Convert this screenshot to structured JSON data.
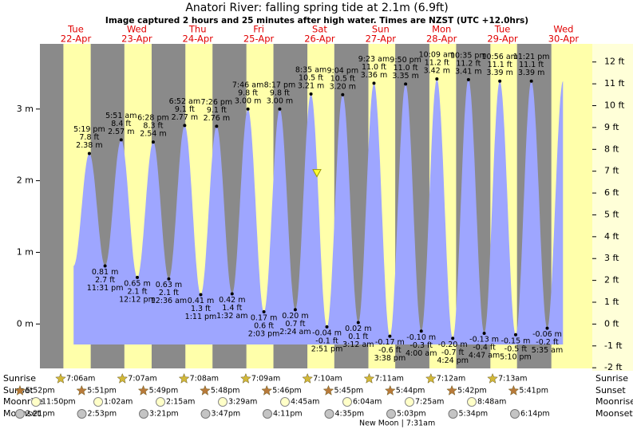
{
  "chart_data": {
    "type": "tide",
    "title": "Anatori River: falling  spring tide at 2.1m (6.9ft)",
    "subtitle": "Image captured 2 hours and 25 minutes after high water. Times are NZST (UTC +12.0hrs)",
    "day_names": [
      "Tue",
      "Wed",
      "Thu",
      "Fri",
      "Sat",
      "Sun",
      "Mon",
      "Tue",
      "Wed"
    ],
    "dates": [
      "22-Apr",
      "23-Apr",
      "24-Apr",
      "25-Apr",
      "26-Apr",
      "27-Apr",
      "28-Apr",
      "29-Apr",
      "30-Apr"
    ],
    "events": {
      "times": [
        "5:19 pm",
        "11:31 pm",
        "5:51 am",
        "12:12 pm",
        "6:28 pm",
        "12:36 am",
        "6:52 am",
        "1:11 pm",
        "7:26 pm",
        "1:32 am",
        "7:46 am",
        "2:03 pm",
        "8:17 pm",
        "2:24 am",
        "8:35 am",
        "2:51 pm",
        "9:04 pm",
        "3:12 am",
        "9:23 am",
        "3:38 pm",
        "9:50 pm",
        "4:00 am",
        "10:09 am",
        "4:24 pm",
        "10:35 pm",
        "4:47 am",
        "10:56 am",
        "5:10 pm",
        "11:21 pm",
        "5:35 am"
      ],
      "values": [
        2.38,
        0.81,
        2.57,
        0.65,
        2.54,
        0.63,
        2.77,
        0.41,
        2.76,
        0.42,
        3.0,
        0.17,
        3.0,
        0.2,
        3.21,
        -0.04,
        3.2,
        0.02,
        3.36,
        -0.17,
        3.35,
        -0.1,
        3.42,
        -0.2,
        3.41,
        -0.13,
        3.39,
        -0.15,
        3.39,
        -0.06
      ],
      "value_labels": [
        "2.38 m",
        "0.81 m",
        "2.57 m",
        "0.65 m",
        "2.54 m",
        "0.63 m",
        "2.77 m",
        "0.41 m",
        "2.76 m",
        "0.42 m",
        "3.00 m",
        "0.17 m",
        "3.00 m",
        "0.20 m",
        "3.21 m",
        "-0.04 m",
        "3.20 m",
        "0.02 m",
        "3.36 m",
        "-0.17 m",
        "3.35 m",
        "-0.10 m",
        "3.42 m",
        "-0.20 m",
        "3.41 m",
        "-0.13 m",
        "3.39 m",
        "-0.15 m",
        "3.39 m",
        "-0.06 m"
      ],
      "ft_labels": [
        "7.8 ft",
        "2.7 ft",
        "8.4 ft",
        "2.1 ft",
        "8.3 ft",
        "2.1 ft",
        "9.1 ft",
        "1.3 ft",
        "9.1 ft",
        "1.4 ft",
        "9.8 ft",
        "0.6 ft",
        "9.8 ft",
        "0.7 ft",
        "10.5 ft",
        "-0.1 ft",
        "10.5 ft",
        "0.1 ft",
        "11.0 ft",
        "-0.6 ft",
        "11.0 ft",
        "-0.3 ft",
        "11.2 ft",
        "-0.7 ft",
        "11.2 ft",
        "-0.4 ft",
        "11.1 ft",
        "-0.5 ft",
        "11.1 ft",
        "-0.2 ft"
      ]
    },
    "current_level": 2.1,
    "ylim": [
      -0.62,
      3.91
    ],
    "yticks": [
      {
        "value": 0,
        "label": "0 m"
      },
      {
        "value": 1,
        "label": "1 m"
      },
      {
        "value": 2,
        "label": "2 m"
      },
      {
        "value": 3,
        "label": "3 m"
      }
    ],
    "y2lim": [
      -2.03,
      12.83
    ],
    "y2ticks": [
      {
        "value": -2,
        "label": "-2 ft"
      },
      {
        "value": -1,
        "label": "-1 ft"
      },
      {
        "value": 0,
        "label": "0 ft"
      },
      {
        "value": 1,
        "label": "1 ft"
      },
      {
        "value": 2,
        "label": "2 ft"
      },
      {
        "value": 3,
        "label": "3 ft"
      },
      {
        "value": 4,
        "label": "4 ft"
      },
      {
        "value": 5,
        "label": "5 ft"
      },
      {
        "value": 6,
        "label": "6 ft"
      },
      {
        "value": 7,
        "label": "7 ft"
      },
      {
        "value": 8,
        "label": "8 ft"
      },
      {
        "value": 9,
        "label": "9 ft"
      },
      {
        "value": 10,
        "label": "10 ft"
      },
      {
        "value": 11,
        "label": "11 ft"
      },
      {
        "value": 12,
        "label": "12 ft"
      }
    ],
    "color": "#9ea6ff",
    "day_color": "#ffffaa",
    "night_color": "#8a8a8a",
    "date_color": "#e00000",
    "rows": {
      "sunrise": {
        "title": "Sunrise",
        "times": [
          "7:06am",
          "7:07am",
          "7:08am",
          "7:09am",
          "7:10am",
          "7:11am",
          "7:12am",
          "7:13am"
        ]
      },
      "sunset": {
        "title": "Sunset",
        "times": [
          "5:52pm",
          "5:51pm",
          "5:49pm",
          "5:48pm",
          "5:46pm",
          "5:45pm",
          "5:44pm",
          "5:42pm",
          "5:41pm"
        ]
      },
      "moonrise": {
        "title": "Moonrise",
        "times": [
          "11:50pm",
          "1:02am",
          "2:15am",
          "3:29am",
          "4:45am",
          "6:04am",
          "7:25am",
          "8:48am"
        ]
      },
      "moonset": {
        "title": "Moonset",
        "times": [
          "2:21pm",
          "2:53pm",
          "3:21pm",
          "3:47pm",
          "4:11pm",
          "4:35pm",
          "5:03pm",
          "5:34pm",
          "6:14pm"
        ]
      }
    },
    "moon_phase": "New Moon | 7:31am"
  }
}
